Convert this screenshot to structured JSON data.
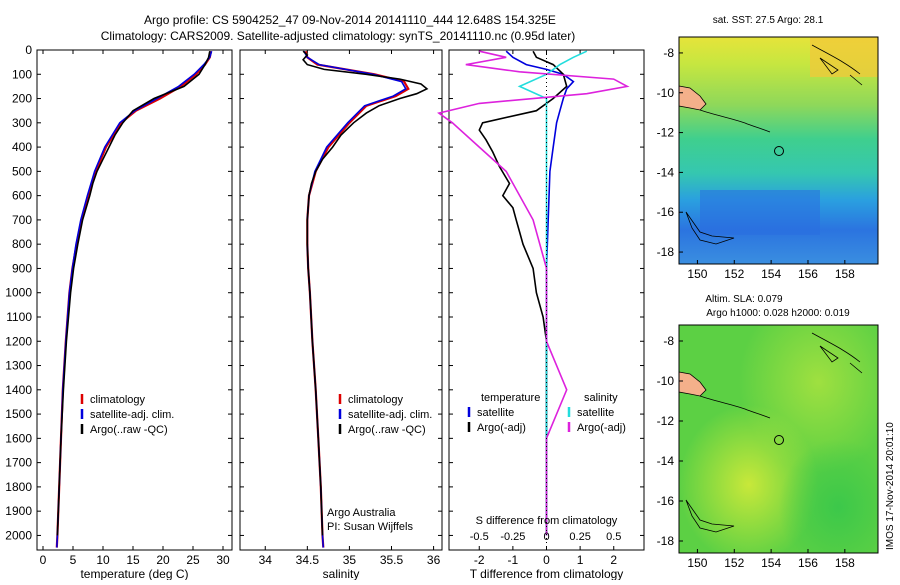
{
  "header": {
    "line1": "Argo profile: CS 5904252_47 09-Nov-2014 20141110_444 12.648S 154.325E",
    "line2": "Climatology: CARS2009. Satellite-adjusted climatology: synTS_20141110.nc (0.95d later)"
  },
  "colors": {
    "clim": "#dd0000",
    "sat": "#0000dd",
    "argo": "#000000",
    "sat_sal": "#22dddd",
    "argo_sal": "#dd22dd"
  },
  "depth_ticks": [
    "0",
    "100",
    "200",
    "300",
    "400",
    "500",
    "600",
    "700",
    "800",
    "900",
    "1000",
    "1100",
    "1200",
    "1300",
    "1400",
    "1500",
    "1600",
    "1700",
    "1800",
    "1900",
    "2000"
  ],
  "chart_data": [
    {
      "type": "line",
      "id": "temperature",
      "xlabel": "temperature (deg C)",
      "ylabel": "depth",
      "xlim": [
        -1,
        31.5
      ],
      "ylim": [
        2060,
        0
      ],
      "x_ticks": [
        "0",
        "5",
        "10",
        "15",
        "20",
        "25",
        "30"
      ],
      "legend": [
        "climatology",
        "satellite-adj. clim.",
        "Argo(..raw -QC)"
      ],
      "series": [
        {
          "name": "climatology",
          "depth": [
            5,
            30,
            60,
            100,
            150,
            200,
            250,
            300,
            400,
            500,
            600,
            700,
            800,
            900,
            1000,
            1200,
            1400,
            1600,
            1800,
            2000,
            2050
          ],
          "values": [
            28.0,
            27.8,
            27.0,
            25.5,
            23.0,
            19.5,
            15.5,
            13.0,
            10.5,
            8.8,
            7.5,
            6.4,
            5.6,
            4.9,
            4.4,
            3.8,
            3.3,
            3.0,
            2.7,
            2.4,
            2.3
          ]
        },
        {
          "name": "satellite-adj. clim.",
          "depth": [
            5,
            30,
            60,
            100,
            150,
            200,
            250,
            300,
            400,
            500,
            600,
            700,
            800,
            900,
            1000,
            1200,
            1400,
            1600,
            1800,
            2000,
            2050
          ],
          "values": [
            28.1,
            27.8,
            26.8,
            25.2,
            22.6,
            19.0,
            15.3,
            12.8,
            10.3,
            8.6,
            7.4,
            6.3,
            5.5,
            4.9,
            4.4,
            3.8,
            3.3,
            3.0,
            2.7,
            2.4,
            2.3
          ]
        },
        {
          "name": "Argo(..raw -QC)",
          "depth": [
            5,
            30,
            60,
            100,
            150,
            200,
            250,
            300,
            350,
            400,
            450,
            500,
            550,
            600,
            700,
            800,
            900,
            1000,
            1200,
            1400,
            1600,
            1800,
            2000
          ],
          "values": [
            27.8,
            27.6,
            27.0,
            26.0,
            23.5,
            18.5,
            15.0,
            13.3,
            12.0,
            11.0,
            10.0,
            9.0,
            8.3,
            7.8,
            6.6,
            5.8,
            5.1,
            4.6,
            3.9,
            3.4,
            3.0,
            2.7,
            2.4
          ]
        }
      ]
    },
    {
      "type": "line",
      "id": "salinity",
      "xlabel": "salinity",
      "ylabel": "depth",
      "xlim": [
        33.7,
        36.1
      ],
      "ylim": [
        2060,
        0
      ],
      "x_ticks": [
        "34",
        "34.5",
        "35",
        "35.5",
        "36"
      ],
      "legend": [
        "climatology",
        "satellite-adj. clim.",
        "Argo(..raw -QC)"
      ],
      "annotation": [
        "Argo Australia",
        "PI: Susan Wijffels"
      ],
      "series": [
        {
          "name": "climatology",
          "depth": [
            5,
            30,
            60,
            100,
            130,
            160,
            190,
            230,
            300,
            400,
            500,
            600,
            700,
            800,
            900,
            1000,
            1200,
            1400,
            1600,
            1800,
            2000,
            2050
          ],
          "values": [
            34.48,
            34.5,
            34.62,
            35.3,
            35.65,
            35.7,
            35.55,
            35.2,
            35.0,
            34.75,
            34.6,
            34.52,
            34.5,
            34.5,
            34.51,
            34.53,
            34.56,
            34.6,
            34.63,
            34.66,
            34.68,
            34.69
          ]
        },
        {
          "name": "satellite-adj. clim.",
          "depth": [
            5,
            30,
            60,
            100,
            130,
            160,
            190,
            230,
            300,
            400,
            500,
            600,
            700,
            800,
            900,
            1000,
            1200,
            1400,
            1600,
            1800,
            2000,
            2050
          ],
          "values": [
            34.46,
            34.5,
            34.64,
            35.28,
            35.62,
            35.67,
            35.52,
            35.18,
            34.98,
            34.73,
            34.59,
            34.52,
            34.5,
            34.5,
            34.51,
            34.53,
            34.56,
            34.6,
            34.63,
            34.66,
            34.68,
            34.69
          ]
        },
        {
          "name": "Argo(..raw -QC)",
          "depth": [
            5,
            20,
            40,
            60,
            80,
            100,
            120,
            140,
            160,
            180,
            200,
            230,
            260,
            300,
            350,
            400,
            450,
            500,
            550,
            600,
            700,
            800,
            900,
            1000,
            1200,
            1400,
            1600,
            1800,
            2000
          ],
          "values": [
            34.45,
            34.5,
            34.45,
            34.5,
            34.7,
            35.2,
            35.6,
            35.85,
            35.92,
            35.8,
            35.6,
            35.35,
            35.2,
            35.05,
            34.9,
            34.8,
            34.68,
            34.6,
            34.55,
            34.52,
            34.5,
            34.5,
            34.51,
            34.53,
            34.56,
            34.6,
            34.63,
            34.66,
            34.68
          ]
        }
      ]
    },
    {
      "type": "line",
      "id": "differences",
      "xlabel": "T difference from climatology",
      "xlabel_top": "S difference from climatology",
      "ylabel": "depth",
      "xlim": [
        -2.9,
        2.9
      ],
      "ylim": [
        2060,
        0
      ],
      "x_ticks": [
        "-2",
        "-1",
        "0",
        "1",
        "2"
      ],
      "x_ticks_top": [
        "-0.5",
        "-0.25",
        "0",
        "0.25",
        "0.5"
      ],
      "legend_temperature": [
        "temperature",
        "satellite",
        "Argo(-adj)"
      ],
      "legend_salinity": [
        "salinity",
        "satellite",
        "Argo(-adj)"
      ],
      "series": [
        {
          "name": "temperature satellite",
          "depth": [
            5,
            30,
            60,
            80,
            100,
            130,
            160,
            200,
            250,
            300,
            400,
            500,
            700,
            900,
            1200,
            1500,
            2000
          ],
          "values": [
            -1.2,
            -1.0,
            -0.6,
            0.0,
            0.5,
            0.8,
            0.6,
            0.5,
            0.4,
            0.3,
            0.2,
            0.1,
            0.05,
            0.0,
            0.0,
            0.0,
            0.0
          ]
        },
        {
          "name": "temperature Argo(-adj)",
          "depth": [
            5,
            30,
            60,
            100,
            150,
            200,
            250,
            300,
            330,
            370,
            420,
            480,
            550,
            600,
            650,
            700,
            750,
            800,
            900,
            1000,
            1100,
            1200,
            1400,
            1600,
            1800,
            2000
          ],
          "values": [
            -0.4,
            -0.3,
            0.2,
            0.5,
            0.6,
            0.2,
            -0.3,
            -1.9,
            -2.0,
            -1.8,
            -1.6,
            -1.4,
            -1.1,
            -1.3,
            -1.0,
            -0.9,
            -0.8,
            -0.7,
            -0.4,
            -0.3,
            -0.1,
            0.0,
            0.0,
            0.0,
            0.0,
            0.0
          ]
        },
        {
          "name": "salinity satellite",
          "depth": [
            5,
            30,
            60,
            100,
            150,
            200,
            300,
            500,
            800,
            1200,
            1600,
            2000
          ],
          "values": [
            0.3,
            0.2,
            0.1,
            0.0,
            -0.2,
            0.0,
            0.0,
            0.0,
            0.0,
            0.0,
            0.0,
            0.0
          ]
        },
        {
          "name": "salinity Argo(-adj)",
          "depth": [
            5,
            30,
            60,
            90,
            120,
            150,
            180,
            220,
            260,
            300,
            400,
            500,
            700,
            900,
            1200,
            1400,
            1600,
            2000
          ],
          "values": [
            -0.5,
            -0.3,
            -0.6,
            -0.2,
            0.5,
            0.6,
            0.3,
            -0.5,
            -0.8,
            -0.7,
            -0.5,
            -0.3,
            -0.1,
            0.0,
            0.0,
            0.15,
            0.0,
            0.0
          ]
        }
      ]
    }
  ],
  "map_sst": {
    "title": "sat. SST: 27.5 Argo: 28.1",
    "x_ticks": [
      "150",
      "152",
      "154",
      "156",
      "158"
    ],
    "y_ticks": [
      "-8",
      "-10",
      "-12",
      "-14",
      "-16",
      "-18"
    ],
    "marker": {
      "lon": 154.325,
      "lat": -12.648
    },
    "lon_range": [
      149,
      159.8
    ],
    "lat_range": [
      -18.6,
      -7.2
    ]
  },
  "map_sla": {
    "title1": "Altim. SLA: 0.079",
    "title2": "Argo h1000: 0.028 h2000: 0.019",
    "x_ticks": [
      "150",
      "152",
      "154",
      "156",
      "158"
    ],
    "y_ticks": [
      "-8",
      "-10",
      "-12",
      "-14",
      "-16",
      "-18"
    ],
    "marker": {
      "lon": 154.325,
      "lat": -12.648
    },
    "lon_range": [
      149,
      159.8
    ],
    "lat_range": [
      -18.6,
      -7.2
    ]
  },
  "side_stamp": "IMOS 17-Nov-2014 20:01:10"
}
